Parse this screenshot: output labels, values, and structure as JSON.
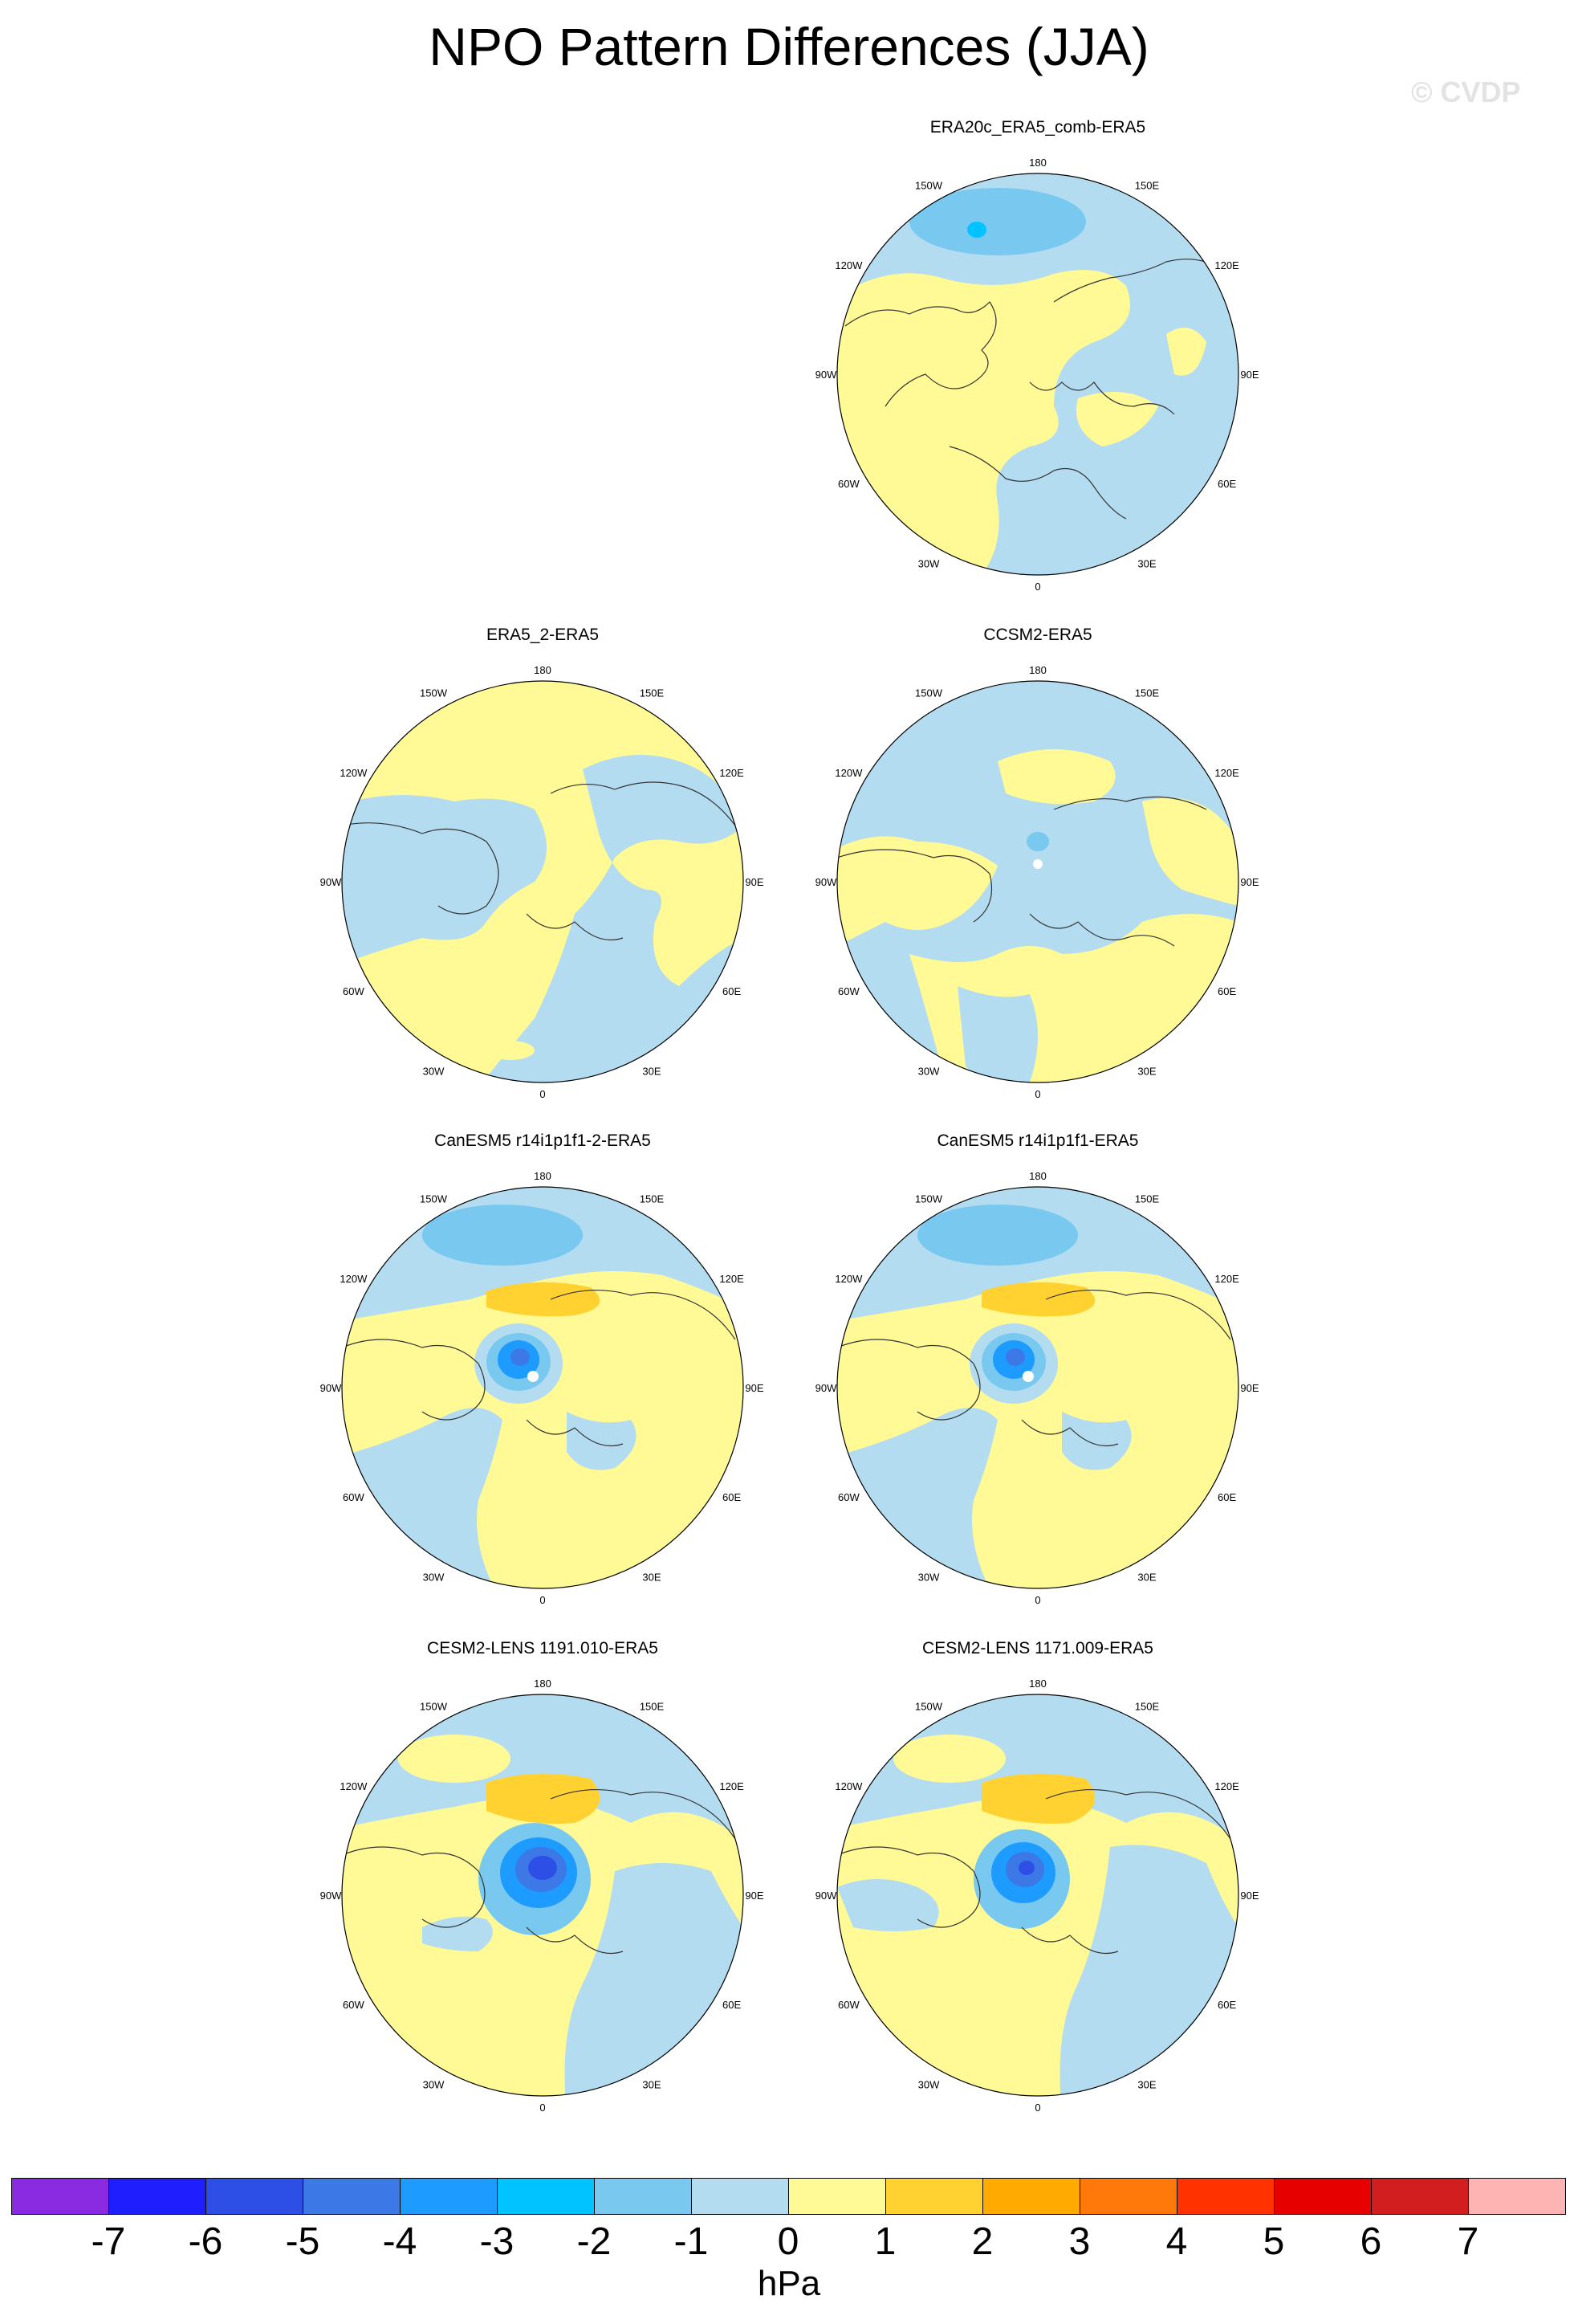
{
  "title": "NPO Pattern Differences (JJA)",
  "watermark": "© CVDP",
  "panels": [
    {
      "id": "p1",
      "title": "ERA20c_ERA5_comb-ERA5"
    },
    {
      "id": "p2",
      "title": "ERA5_2-ERA5"
    },
    {
      "id": "p3",
      "title": "CCSM2-ERA5"
    },
    {
      "id": "p4",
      "title": "CanESM5 r14i1p1f1-2-ERA5"
    },
    {
      "id": "p5",
      "title": "CanESM5 r14i1p1f1-ERA5"
    },
    {
      "id": "p6",
      "title": "CESM2-LENS 1191.010-ERA5"
    },
    {
      "id": "p7",
      "title": "CESM2-LENS 1171.009-ERA5"
    }
  ],
  "longitude_labels": [
    "180",
    "150E",
    "120E",
    "90E",
    "60E",
    "30E",
    "0",
    "30W",
    "60W",
    "90W",
    "120W",
    "150W"
  ],
  "colorbar": {
    "units": "hPa",
    "labels": [
      "-7",
      "-6",
      "-5",
      "-4",
      "-3",
      "-2",
      "-1",
      "0",
      "1",
      "2",
      "3",
      "4",
      "5",
      "6",
      "7"
    ],
    "colors": [
      "#8a2be2",
      "#1e1eff",
      "#2d4fe6",
      "#3c78e6",
      "#1e9bff",
      "#00c3ff",
      "#78c8f0",
      "#b4dcf0",
      "#fffa96",
      "#ffd232",
      "#ffaa00",
      "#ff780a",
      "#ff3200",
      "#e60000",
      "#d21e1e",
      "#ffb4b4"
    ]
  }
}
